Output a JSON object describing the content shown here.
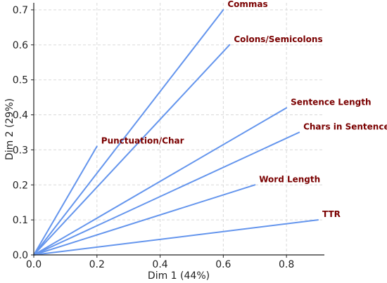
{
  "chart_data": {
    "type": "line",
    "title": "",
    "xlabel": "Dim 1 (44%)",
    "ylabel": "Dim 2 (29%)",
    "xlim": [
      0,
      0.92
    ],
    "ylim": [
      0,
      0.72
    ],
    "x_ticks": [
      "0.0",
      "0.2",
      "0.4",
      "0.6",
      "0.8"
    ],
    "y_ticks": [
      "0.0",
      "0.1",
      "0.2",
      "0.3",
      "0.4",
      "0.5",
      "0.6",
      "0.7"
    ],
    "grid": true,
    "line_color": "#6495ED",
    "label_color": "#7a0000",
    "series": [
      {
        "name": "Commas",
        "x": [
          0,
          0.6
        ],
        "y": [
          0,
          0.7
        ]
      },
      {
        "name": "Colons/Semicolons",
        "x": [
          0,
          0.62
        ],
        "y": [
          0,
          0.6
        ]
      },
      {
        "name": "Sentence Length",
        "x": [
          0,
          0.8
        ],
        "y": [
          0,
          0.42
        ]
      },
      {
        "name": "Chars in Sentence",
        "x": [
          0,
          0.84
        ],
        "y": [
          0,
          0.35
        ]
      },
      {
        "name": "Punctuation/Char",
        "x": [
          0,
          0.2
        ],
        "y": [
          0,
          0.31
        ]
      },
      {
        "name": "Word Length",
        "x": [
          0,
          0.7
        ],
        "y": [
          0,
          0.2
        ]
      },
      {
        "name": "TTR",
        "x": [
          0,
          0.9
        ],
        "y": [
          0,
          0.1
        ]
      }
    ]
  }
}
